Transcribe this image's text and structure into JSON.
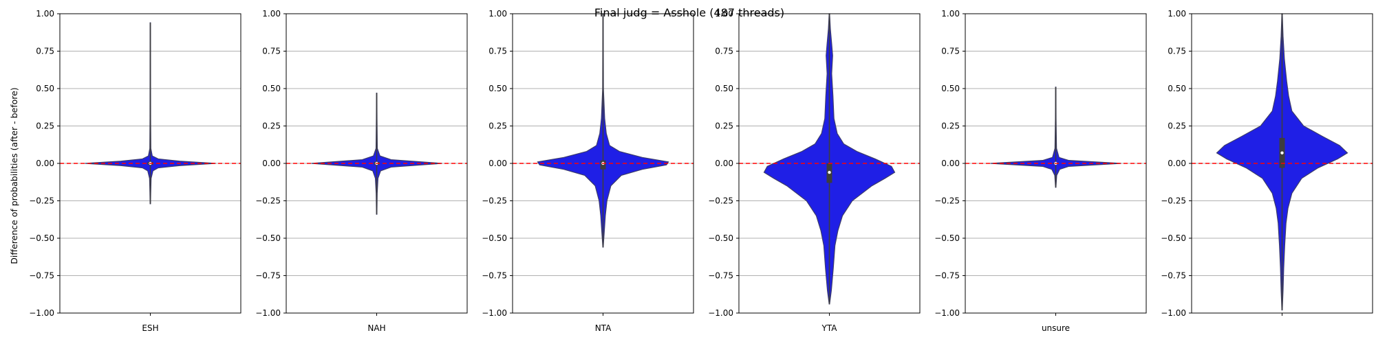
{
  "chart_data": {
    "type": "violin",
    "title": "Final judg = Asshole (487 threads)",
    "ylabel": "Difference of probabilities (after - before)",
    "ylim": [
      -1.0,
      1.0
    ],
    "yticks": [
      -1.0,
      -0.75,
      -0.5,
      -0.25,
      0.0,
      0.25,
      0.5,
      0.75,
      1.0
    ],
    "ytick_labels": [
      "−1.00",
      "−0.75",
      "−0.50",
      "−0.25",
      "0.00",
      "0.25",
      "0.50",
      "0.75",
      "1.00"
    ],
    "grid": "horizontal",
    "reference_line": {
      "y": 0.0,
      "color": "#ff0000",
      "style": "dashed"
    },
    "violin_color": "#1f1fe6",
    "panels": [
      {
        "category": "ESH",
        "min": -0.27,
        "max": 0.94,
        "q1": -0.01,
        "median": 0.0,
        "q3": 0.01,
        "density": [
          [
            -0.27,
            0.003
          ],
          [
            -0.2,
            0.006
          ],
          [
            -0.1,
            0.012
          ],
          [
            -0.05,
            0.04
          ],
          [
            -0.03,
            0.12
          ],
          [
            -0.015,
            0.45
          ],
          [
            0.0,
            1.0
          ],
          [
            0.015,
            0.45
          ],
          [
            0.03,
            0.12
          ],
          [
            0.05,
            0.03
          ],
          [
            0.1,
            0.008
          ],
          [
            0.3,
            0.005
          ],
          [
            0.6,
            0.004
          ],
          [
            0.94,
            0.003
          ]
        ]
      },
      {
        "category": "NAH",
        "min": -0.34,
        "max": 0.47,
        "q1": -0.01,
        "median": 0.0,
        "q3": 0.01,
        "density": [
          [
            -0.34,
            0.003
          ],
          [
            -0.2,
            0.008
          ],
          [
            -0.1,
            0.02
          ],
          [
            -0.05,
            0.06
          ],
          [
            -0.025,
            0.22
          ],
          [
            0.0,
            1.0
          ],
          [
            0.025,
            0.22
          ],
          [
            0.05,
            0.05
          ],
          [
            0.1,
            0.01
          ],
          [
            0.3,
            0.005
          ],
          [
            0.47,
            0.003
          ]
        ]
      },
      {
        "category": "NTA",
        "min": -0.56,
        "max": 1.0,
        "q1": -0.04,
        "median": 0.0,
        "q3": 0.02,
        "density": [
          [
            -0.56,
            0.003
          ],
          [
            -0.45,
            0.02
          ],
          [
            -0.35,
            0.035
          ],
          [
            -0.25,
            0.06
          ],
          [
            -0.15,
            0.12
          ],
          [
            -0.08,
            0.28
          ],
          [
            -0.04,
            0.6
          ],
          [
            -0.01,
            0.97
          ],
          [
            0.01,
            1.0
          ],
          [
            0.04,
            0.6
          ],
          [
            0.08,
            0.25
          ],
          [
            0.12,
            0.1
          ],
          [
            0.2,
            0.05
          ],
          [
            0.3,
            0.025
          ],
          [
            0.5,
            0.006
          ],
          [
            0.8,
            0.004
          ],
          [
            1.0,
            0.003
          ]
        ]
      },
      {
        "category": "YTA",
        "min": -0.94,
        "max": 1.0,
        "q1": -0.13,
        "median": -0.06,
        "q3": 0.0,
        "density": [
          [
            -0.94,
            0.003
          ],
          [
            -0.85,
            0.03
          ],
          [
            -0.7,
            0.06
          ],
          [
            -0.55,
            0.085
          ],
          [
            -0.45,
            0.13
          ],
          [
            -0.35,
            0.2
          ],
          [
            -0.25,
            0.35
          ],
          [
            -0.15,
            0.65
          ],
          [
            -0.1,
            0.85
          ],
          [
            -0.06,
            1.0
          ],
          [
            -0.02,
            0.95
          ],
          [
            0.03,
            0.7
          ],
          [
            0.08,
            0.42
          ],
          [
            0.13,
            0.22
          ],
          [
            0.2,
            0.12
          ],
          [
            0.3,
            0.07
          ],
          [
            0.45,
            0.055
          ],
          [
            0.6,
            0.035
          ],
          [
            0.72,
            0.05
          ],
          [
            0.8,
            0.035
          ],
          [
            0.9,
            0.015
          ],
          [
            1.0,
            0.003
          ]
        ]
      },
      {
        "category": "unsure",
        "min": -0.16,
        "max": 0.51,
        "q1": -0.005,
        "median": 0.0,
        "q3": 0.005,
        "density": [
          [
            -0.16,
            0.003
          ],
          [
            -0.08,
            0.015
          ],
          [
            -0.04,
            0.06
          ],
          [
            -0.02,
            0.2
          ],
          [
            0.0,
            1.0
          ],
          [
            0.02,
            0.2
          ],
          [
            0.04,
            0.05
          ],
          [
            0.1,
            0.012
          ],
          [
            0.3,
            0.005
          ],
          [
            0.51,
            0.003
          ]
        ]
      },
      {
        "category": "",
        "min": -0.98,
        "max": 1.0,
        "q1": -0.03,
        "median": 0.07,
        "q3": 0.17,
        "density": [
          [
            -0.98,
            0.003
          ],
          [
            -0.85,
            0.015
          ],
          [
            -0.7,
            0.025
          ],
          [
            -0.55,
            0.04
          ],
          [
            -0.4,
            0.06
          ],
          [
            -0.3,
            0.09
          ],
          [
            -0.2,
            0.15
          ],
          [
            -0.1,
            0.3
          ],
          [
            -0.03,
            0.55
          ],
          [
            0.03,
            0.85
          ],
          [
            0.07,
            1.0
          ],
          [
            0.12,
            0.88
          ],
          [
            0.18,
            0.62
          ],
          [
            0.25,
            0.33
          ],
          [
            0.35,
            0.15
          ],
          [
            0.45,
            0.1
          ],
          [
            0.55,
            0.07
          ],
          [
            0.7,
            0.035
          ],
          [
            0.85,
            0.015
          ],
          [
            1.0,
            0.003
          ]
        ]
      }
    ]
  }
}
